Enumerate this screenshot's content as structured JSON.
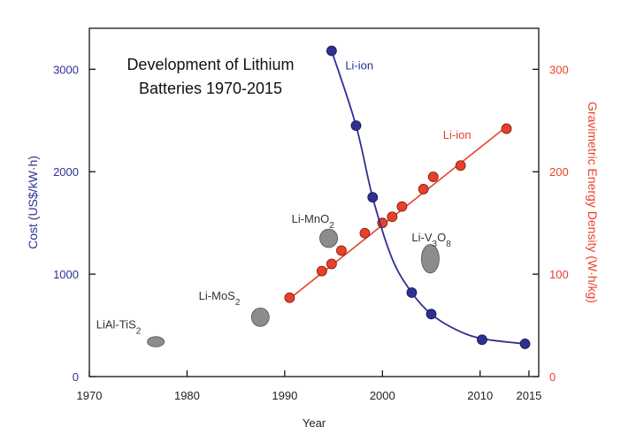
{
  "chart_data": {
    "type": "scatter",
    "title_lines": [
      "Development of Lithium",
      "Batteries 1970-2015"
    ],
    "xlabel": "Year",
    "ylabel_left": "Cost (US$/kW·h)",
    "ylabel_right": "Gravimetric Energy Density (W·h/kg)",
    "xlim": [
      1970,
      2016
    ],
    "ylim_left": [
      0,
      3400
    ],
    "ylim_right": [
      0,
      340
    ],
    "x_ticks": [
      1970,
      1980,
      1990,
      2000,
      2010,
      2015
    ],
    "y_ticks_left": [
      0,
      1000,
      2000,
      3000
    ],
    "y_ticks_right": [
      0,
      100,
      200,
      300
    ],
    "grid": false,
    "colors": {
      "cost": "#2e3192",
      "energy": "#e8402a",
      "other": "#8c8c8c"
    },
    "series": [
      {
        "name": "Li-ion",
        "axis": "left",
        "color": "#2e3192",
        "points": [
          {
            "x": 1994.8,
            "y": 3180
          },
          {
            "x": 1997.3,
            "y": 2450
          },
          {
            "x": 1999.0,
            "y": 1750
          },
          {
            "x": 2003.0,
            "y": 820
          },
          {
            "x": 2005.0,
            "y": 610
          },
          {
            "x": 2010.2,
            "y": 360
          },
          {
            "x": 2014.6,
            "y": 320
          }
        ],
        "curve": [
          {
            "x": 1994.8,
            "y": 3180
          },
          {
            "x": 1997.3,
            "y": 2450
          },
          {
            "x": 1999.0,
            "y": 1750
          },
          {
            "x": 2001.0,
            "y": 1150
          },
          {
            "x": 2003.0,
            "y": 820
          },
          {
            "x": 2005.0,
            "y": 610
          },
          {
            "x": 2007.5,
            "y": 460
          },
          {
            "x": 2010.2,
            "y": 370
          },
          {
            "x": 2014.6,
            "y": 320
          }
        ],
        "label": {
          "text": "Li-ion",
          "x": 1996.2,
          "y": 3000
        }
      },
      {
        "name": "Li-ion",
        "axis": "right",
        "color": "#e8402a",
        "points": [
          {
            "x": 1990.5,
            "y": 77
          },
          {
            "x": 1993.8,
            "y": 103
          },
          {
            "x": 1994.8,
            "y": 110
          },
          {
            "x": 1995.8,
            "y": 123
          },
          {
            "x": 1998.2,
            "y": 140
          },
          {
            "x": 2000.0,
            "y": 150
          },
          {
            "x": 2001.0,
            "y": 156
          },
          {
            "x": 2002.0,
            "y": 166
          },
          {
            "x": 2004.2,
            "y": 183
          },
          {
            "x": 2005.2,
            "y": 195
          },
          {
            "x": 2008.0,
            "y": 206
          },
          {
            "x": 2012.7,
            "y": 242
          }
        ],
        "line": [
          {
            "x": 1990.5,
            "y": 76
          },
          {
            "x": 2012.7,
            "y": 244
          }
        ],
        "label": {
          "text": "Li-ion",
          "x": 2006.2,
          "y": 232
        }
      }
    ],
    "chemistries": [
      {
        "name": "LiAl-TiS",
        "subscript": "2",
        "x": 1976.8,
        "y": 34,
        "rx": 1.9,
        "ry": 5,
        "label_x": 1970.7,
        "label_y": 47
      },
      {
        "name": "Li-MoS",
        "subscript": "2",
        "x": 1987.5,
        "y": 58,
        "rx": 2.0,
        "ry": 9,
        "label_x": 1981.2,
        "label_y": 75
      },
      {
        "name": "Li-MnO",
        "subscript": "2",
        "x": 1994.5,
        "y": 135,
        "rx": 2.0,
        "ry": 9,
        "label_x": 1990.7,
        "label_y": 150
      },
      {
        "name": "Li-V",
        "subscript": "3",
        "suffix": "O",
        "suffix_subscript": "8",
        "x": 2004.9,
        "y": 115,
        "rx": 2.0,
        "ry": 14,
        "label_x": 2003.0,
        "label_y": 132
      }
    ]
  }
}
